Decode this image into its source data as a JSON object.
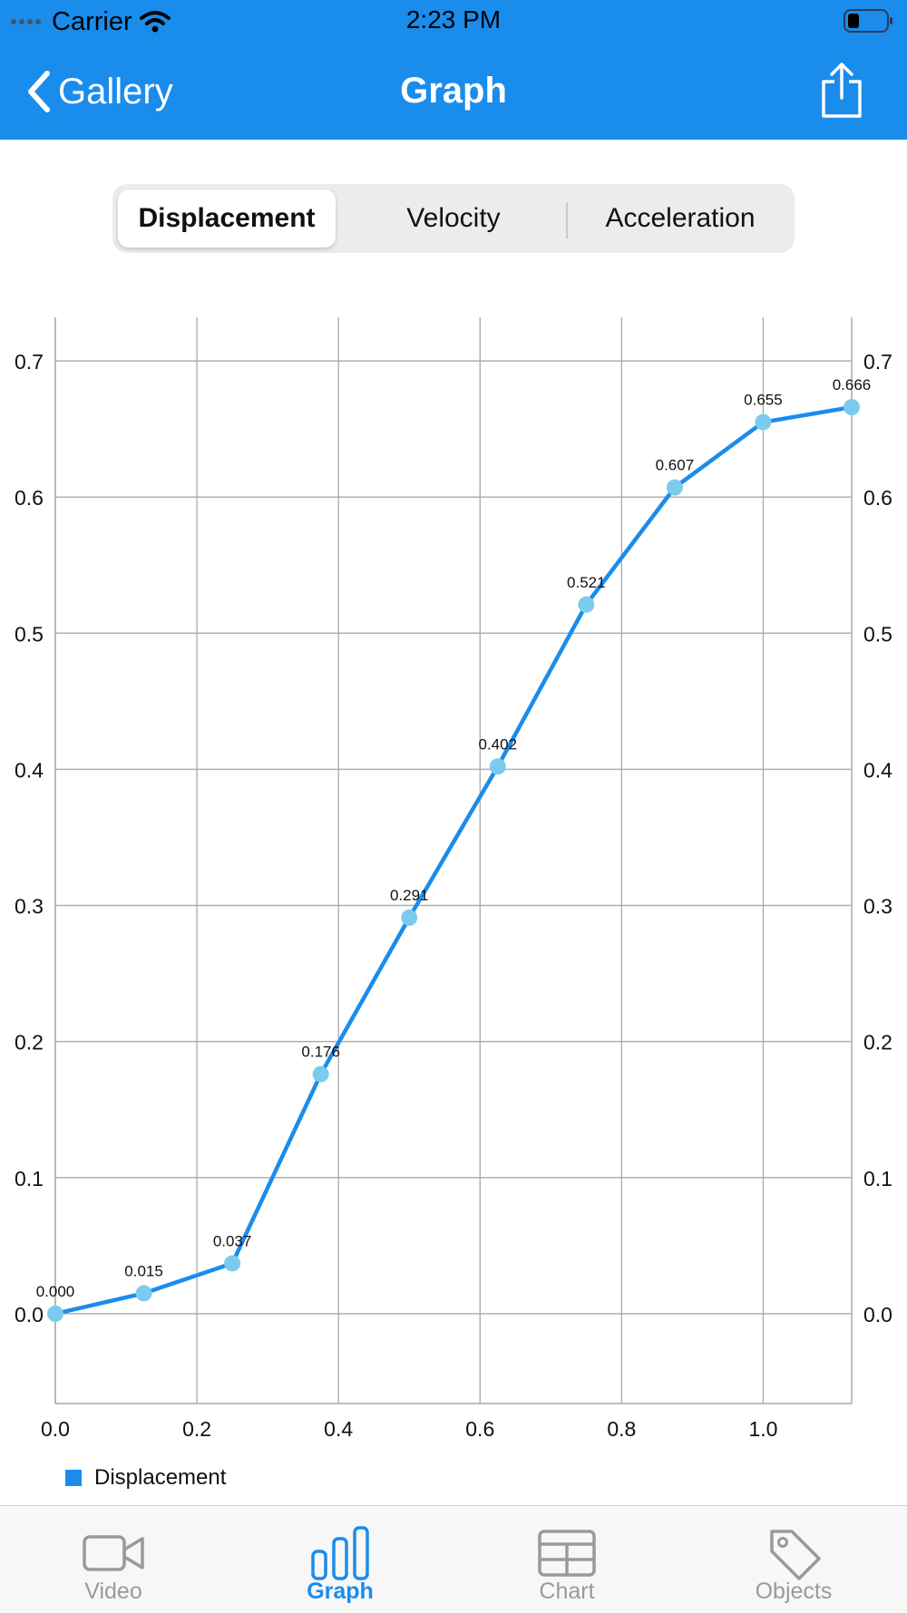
{
  "status": {
    "carrier": "Carrier",
    "time": "2:23 PM"
  },
  "nav": {
    "back_label": "Gallery",
    "title": "Graph"
  },
  "segments": [
    {
      "label": "Displacement",
      "selected": true
    },
    {
      "label": "Velocity",
      "selected": false
    },
    {
      "label": "Acceleration",
      "selected": false
    }
  ],
  "colors": {
    "accent": "#1a8cec",
    "point": "#7bcbee",
    "grid": "#a9a9a9"
  },
  "chart_data": {
    "type": "line",
    "x": [
      0.0,
      0.125,
      0.25,
      0.375,
      0.5,
      0.625,
      0.75,
      0.875,
      1.0,
      1.125
    ],
    "series": [
      {
        "name": "Displacement",
        "values": [
          0.0,
          0.015,
          0.037,
          0.176,
          0.291,
          0.402,
          0.521,
          0.607,
          0.655,
          0.666
        ],
        "labels": [
          "0.000",
          "0.015",
          "0.037",
          "0.176",
          "0.291",
          "0.402",
          "0.521",
          "0.607",
          "0.655",
          "0.666"
        ]
      }
    ],
    "xlim": [
      0.0,
      1.125
    ],
    "ylim": [
      -0.066,
      0.732
    ],
    "x_ticks": [
      "0.0",
      "0.2",
      "0.4",
      "0.6",
      "0.8",
      "1.0"
    ],
    "y_ticks": [
      "0.0",
      "0.1",
      "0.2",
      "0.3",
      "0.4",
      "0.5",
      "0.6",
      "0.7"
    ],
    "grid": true,
    "legend": "bottom-left"
  },
  "legend": {
    "label": "Displacement"
  },
  "tabs": [
    {
      "label": "Video",
      "icon": "video-camera-icon",
      "active": false
    },
    {
      "label": "Graph",
      "icon": "bar-chart-icon",
      "active": true
    },
    {
      "label": "Chart",
      "icon": "table-icon",
      "active": false
    },
    {
      "label": "Objects",
      "icon": "tag-icon",
      "active": false
    }
  ]
}
